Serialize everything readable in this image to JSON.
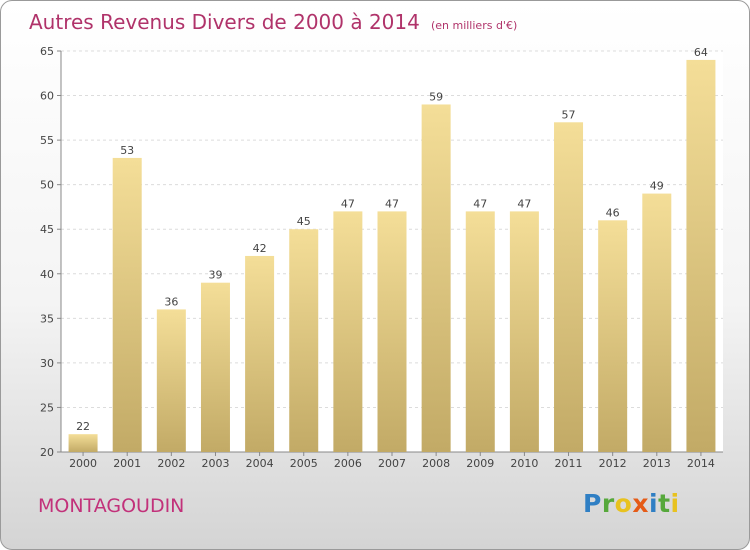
{
  "title": "Autres Revenus Divers de 2000 à 2014",
  "unit_note": "(en milliers d'€)",
  "place": "MONTAGOUDIN",
  "logo_text": "Proxiti",
  "colors": {
    "title": "#b0336a",
    "place": "#c2317a",
    "bar_top": "#f4de98",
    "bar_bottom": "#c2aa66",
    "logo_p": "#2f7fc4",
    "logo_r": "#56a83b",
    "logo_o": "#e8c21f",
    "logo_x": "#e55b17",
    "logo_i1": "#2f7fc4",
    "logo_t": "#56a83b",
    "logo_i2": "#e8c21f"
  },
  "chart_data": {
    "type": "bar",
    "title": "Autres Revenus Divers de 2000 à 2014",
    "subtitle": "(en milliers d'€)",
    "categories": [
      "2000",
      "2001",
      "2002",
      "2003",
      "2004",
      "2005",
      "2006",
      "2007",
      "2008",
      "2009",
      "2010",
      "2011",
      "2012",
      "2013",
      "2014"
    ],
    "values": [
      22,
      53,
      36,
      39,
      42,
      45,
      47,
      47,
      59,
      47,
      47,
      57,
      46,
      49,
      64
    ],
    "ylim": [
      20,
      65
    ],
    "yticks": [
      20,
      25,
      30,
      35,
      40,
      45,
      50,
      55,
      60,
      65
    ],
    "grid": true,
    "xlabel": "",
    "ylabel": ""
  }
}
